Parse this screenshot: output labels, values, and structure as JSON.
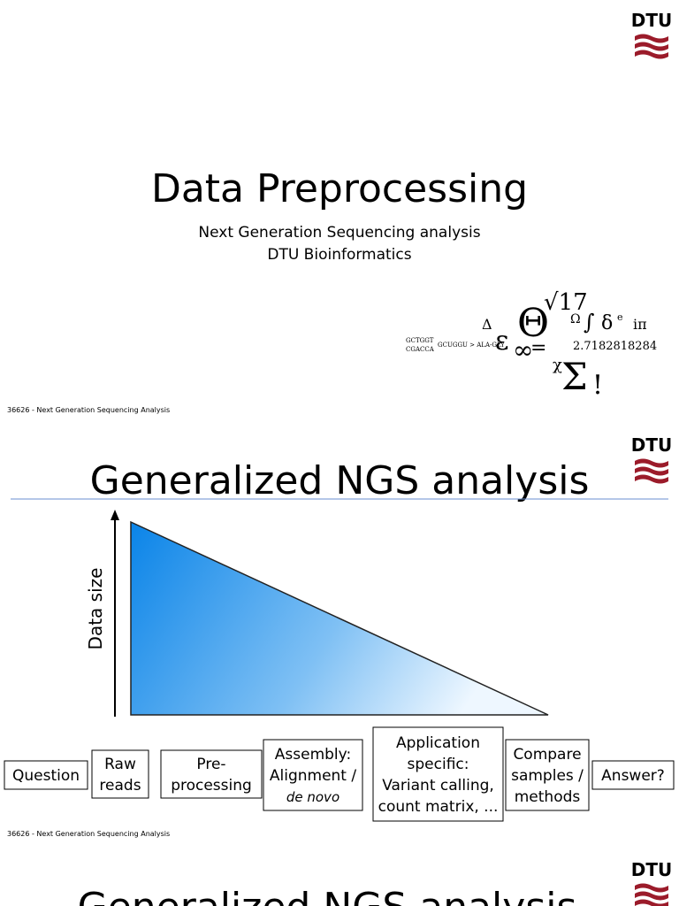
{
  "logo": "DTU",
  "slide1": {
    "title": "Data Preprocessing",
    "subtitle": [
      "Next Generation Sequencing analysis",
      "DTU Bioinformatics"
    ],
    "art": [
      "Δ",
      "ε",
      "Θ",
      "√17",
      "Ω",
      "∫",
      "δ",
      "e",
      "iπ",
      "=",
      "2.7182818284",
      "∞",
      "χ",
      "Σ",
      "!",
      "GCTGGT",
      "CGACCA",
      "GCUGGU > ALA-GLY"
    ],
    "footer": "36626 - Next Generation Sequencing Analysis"
  },
  "slide2": {
    "title": "Generalized NGS analysis",
    "y_axis_label": "Data size",
    "steps": [
      [
        "Question"
      ],
      [
        "Raw",
        "reads"
      ],
      [
        "Pre-",
        "processing"
      ],
      [
        "Assembly:",
        "Alignment /",
        "de novo"
      ],
      [
        "Application",
        "specific:",
        "Variant calling,",
        "count matrix, ..."
      ],
      [
        "Compare",
        "samples /",
        "methods"
      ],
      [
        "Answer?"
      ]
    ],
    "footer": "36626 - Next Generation Sequencing Analysis"
  },
  "slide3": {
    "title": "Generalized NGS analysis"
  }
}
